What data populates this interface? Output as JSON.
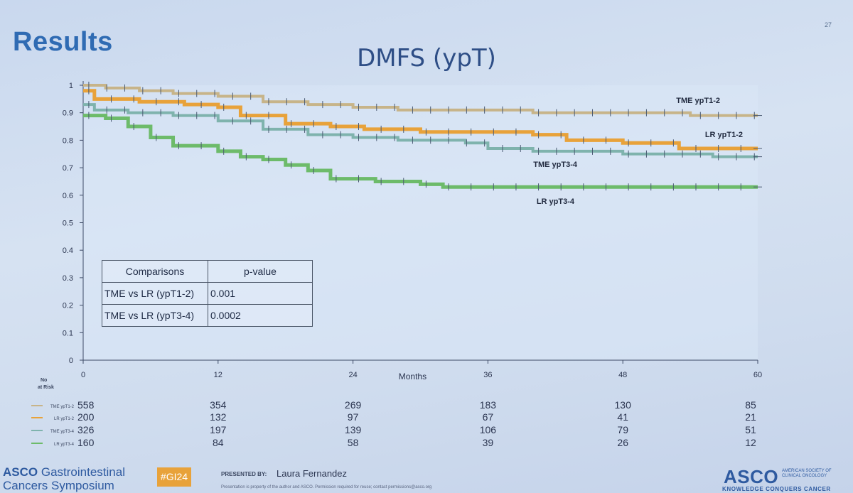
{
  "slide": {
    "number": "27",
    "heading": "Results",
    "title": "DMFS (ypT)"
  },
  "chart_data": {
    "type": "line",
    "title": "DMFS (ypT)",
    "xlabel": "Months",
    "ylabel": "",
    "xlim": [
      0,
      60
    ],
    "ylim": [
      0,
      1
    ],
    "x_ticks": [
      0,
      12,
      24,
      36,
      48,
      60
    ],
    "y_ticks": [
      0,
      0.1,
      0.2,
      0.3,
      0.4,
      0.5,
      0.6,
      0.7,
      0.8,
      0.9,
      1
    ],
    "y_tick_labels": [
      "0",
      "0.1",
      "0.2",
      "0.3",
      "0.4",
      "0.5",
      "0.6",
      "0.7",
      "0.8",
      "0.9",
      "1"
    ],
    "grid": false,
    "series": [
      {
        "name": "TME ypT1-2",
        "color": "#c7b489",
        "points": [
          [
            0,
            1.0
          ],
          [
            2,
            0.99
          ],
          [
            5,
            0.98
          ],
          [
            8,
            0.97
          ],
          [
            12,
            0.96
          ],
          [
            16,
            0.94
          ],
          [
            20,
            0.93
          ],
          [
            24,
            0.92
          ],
          [
            28,
            0.91
          ],
          [
            34,
            0.91
          ],
          [
            40,
            0.9
          ],
          [
            48,
            0.9
          ],
          [
            54,
            0.89
          ],
          [
            60,
            0.89
          ]
        ]
      },
      {
        "name": "LR ypT1-2",
        "color": "#e8a23a",
        "points": [
          [
            0,
            0.98
          ],
          [
            1,
            0.95
          ],
          [
            5,
            0.94
          ],
          [
            9,
            0.93
          ],
          [
            12,
            0.92
          ],
          [
            14,
            0.89
          ],
          [
            18,
            0.86
          ],
          [
            22,
            0.85
          ],
          [
            25,
            0.84
          ],
          [
            30,
            0.83
          ],
          [
            40,
            0.82
          ],
          [
            43,
            0.8
          ],
          [
            48,
            0.79
          ],
          [
            52,
            0.79
          ],
          [
            53,
            0.77
          ],
          [
            60,
            0.77
          ]
        ]
      },
      {
        "name": "TME ypT3-4",
        "color": "#7fb3ad",
        "points": [
          [
            0,
            0.93
          ],
          [
            1,
            0.91
          ],
          [
            4,
            0.9
          ],
          [
            8,
            0.89
          ],
          [
            12,
            0.87
          ],
          [
            16,
            0.84
          ],
          [
            20,
            0.82
          ],
          [
            24,
            0.81
          ],
          [
            28,
            0.8
          ],
          [
            34,
            0.79
          ],
          [
            36,
            0.77
          ],
          [
            40,
            0.76
          ],
          [
            48,
            0.75
          ],
          [
            56,
            0.74
          ],
          [
            60,
            0.74
          ]
        ]
      },
      {
        "name": "LR ypT3-4",
        "color": "#6dbb6a",
        "points": [
          [
            0,
            0.89
          ],
          [
            2,
            0.88
          ],
          [
            4,
            0.85
          ],
          [
            6,
            0.81
          ],
          [
            8,
            0.78
          ],
          [
            12,
            0.76
          ],
          [
            14,
            0.74
          ],
          [
            16,
            0.73
          ],
          [
            18,
            0.71
          ],
          [
            20,
            0.69
          ],
          [
            22,
            0.66
          ],
          [
            26,
            0.65
          ],
          [
            30,
            0.64
          ],
          [
            32,
            0.63
          ],
          [
            40,
            0.63
          ],
          [
            50,
            0.63
          ],
          [
            60,
            0.63
          ]
        ]
      }
    ],
    "series_labels": [
      {
        "text": "TME ypT1-2",
        "series": 0
      },
      {
        "text": "LR ypT1-2",
        "series": 1
      },
      {
        "text": "TME ypT3-4",
        "series": 2
      },
      {
        "text": "LR ypT3-4",
        "series": 3
      }
    ],
    "risk_table": {
      "header_line1": "No",
      "header_line2": "at Risk",
      "times": [
        0,
        12,
        24,
        36,
        48,
        60
      ],
      "rows": [
        {
          "label": "TME ypT1-2",
          "values": [
            "558",
            "354",
            "269",
            "183",
            "130",
            "85"
          ],
          "color": "#c7b489"
        },
        {
          "label": "LR ypT1-2",
          "values": [
            "200",
            "132",
            "97",
            "67",
            "41",
            "21"
          ],
          "color": "#e8a23a"
        },
        {
          "label": "TME ypT3-4",
          "values": [
            "326",
            "197",
            "139",
            "106",
            "79",
            "51"
          ],
          "color": "#7fb3ad"
        },
        {
          "label": "LR ypT3-4",
          "values": [
            "160",
            "84",
            "58",
            "39",
            "26",
            "12"
          ],
          "color": "#6dbb6a"
        }
      ]
    }
  },
  "pvalue_table": {
    "headers": [
      "Comparisons",
      "p-value"
    ],
    "rows": [
      {
        "comparison": "TME vs LR (ypT1-2)",
        "p": "0.001"
      },
      {
        "comparison": "TME vs LR (ypT3-4)",
        "p": "0.0002"
      }
    ]
  },
  "footer": {
    "org_left_line1_bold": "ASCO",
    "org_left_line1": "Gastrointestinal",
    "org_left_line2": "Cancers Symposium",
    "hashtag": "#GI24",
    "presented_by_label": "PRESENTED BY:",
    "presenter": "Laura Fernandez",
    "disclaimer": "Presentation is property of the author and ASCO. Permission required for reuse; contact permissions@asco.org",
    "org_right": "ASCO",
    "org_right_full": "AMERICAN SOCIETY OF CLINICAL ONCOLOGY",
    "tagline": "KNOWLEDGE CONQUERS CANCER"
  }
}
